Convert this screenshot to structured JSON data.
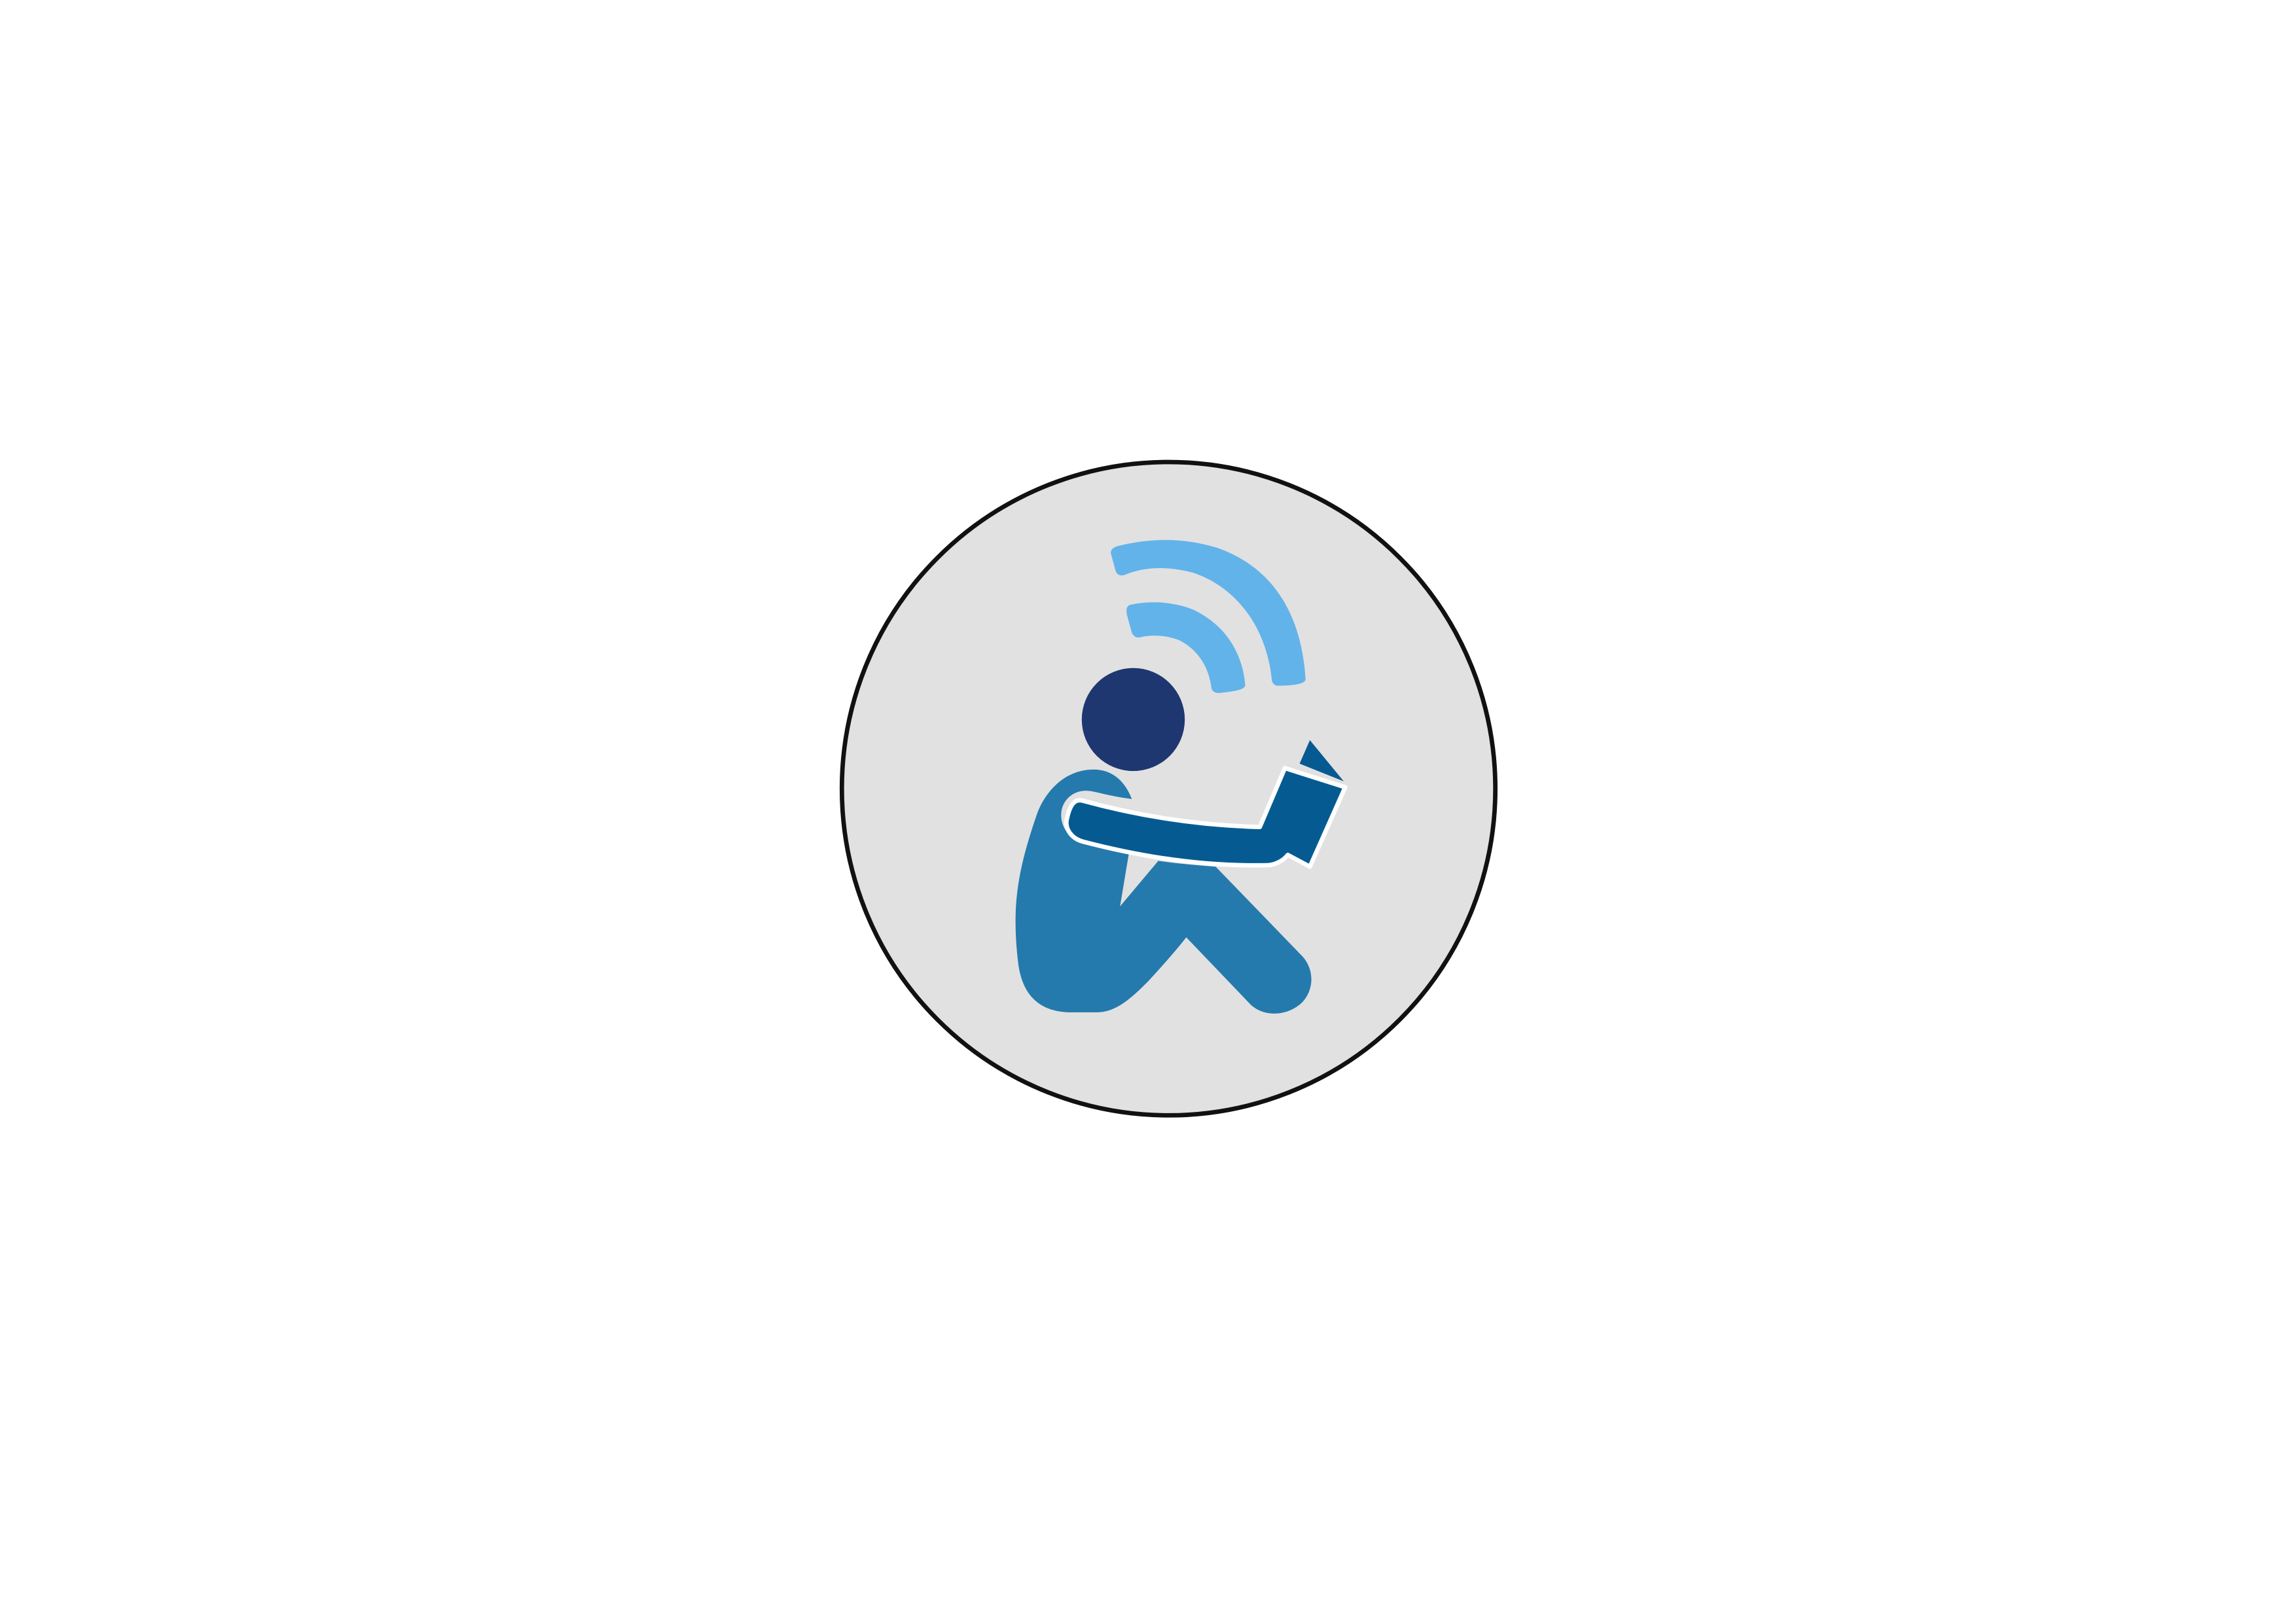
{
  "canvas": {
    "background_color": "#ffffff"
  },
  "badge": {
    "icon": "person-reading-audiobook-icon",
    "circle_fill_color": "#e1e1e1",
    "circle_stroke_color": "#111111",
    "head_color": "#1e3770",
    "body_color": "#247aad",
    "arm_book_color": "#055b91",
    "sound_waves_color": "#62b3ea"
  }
}
